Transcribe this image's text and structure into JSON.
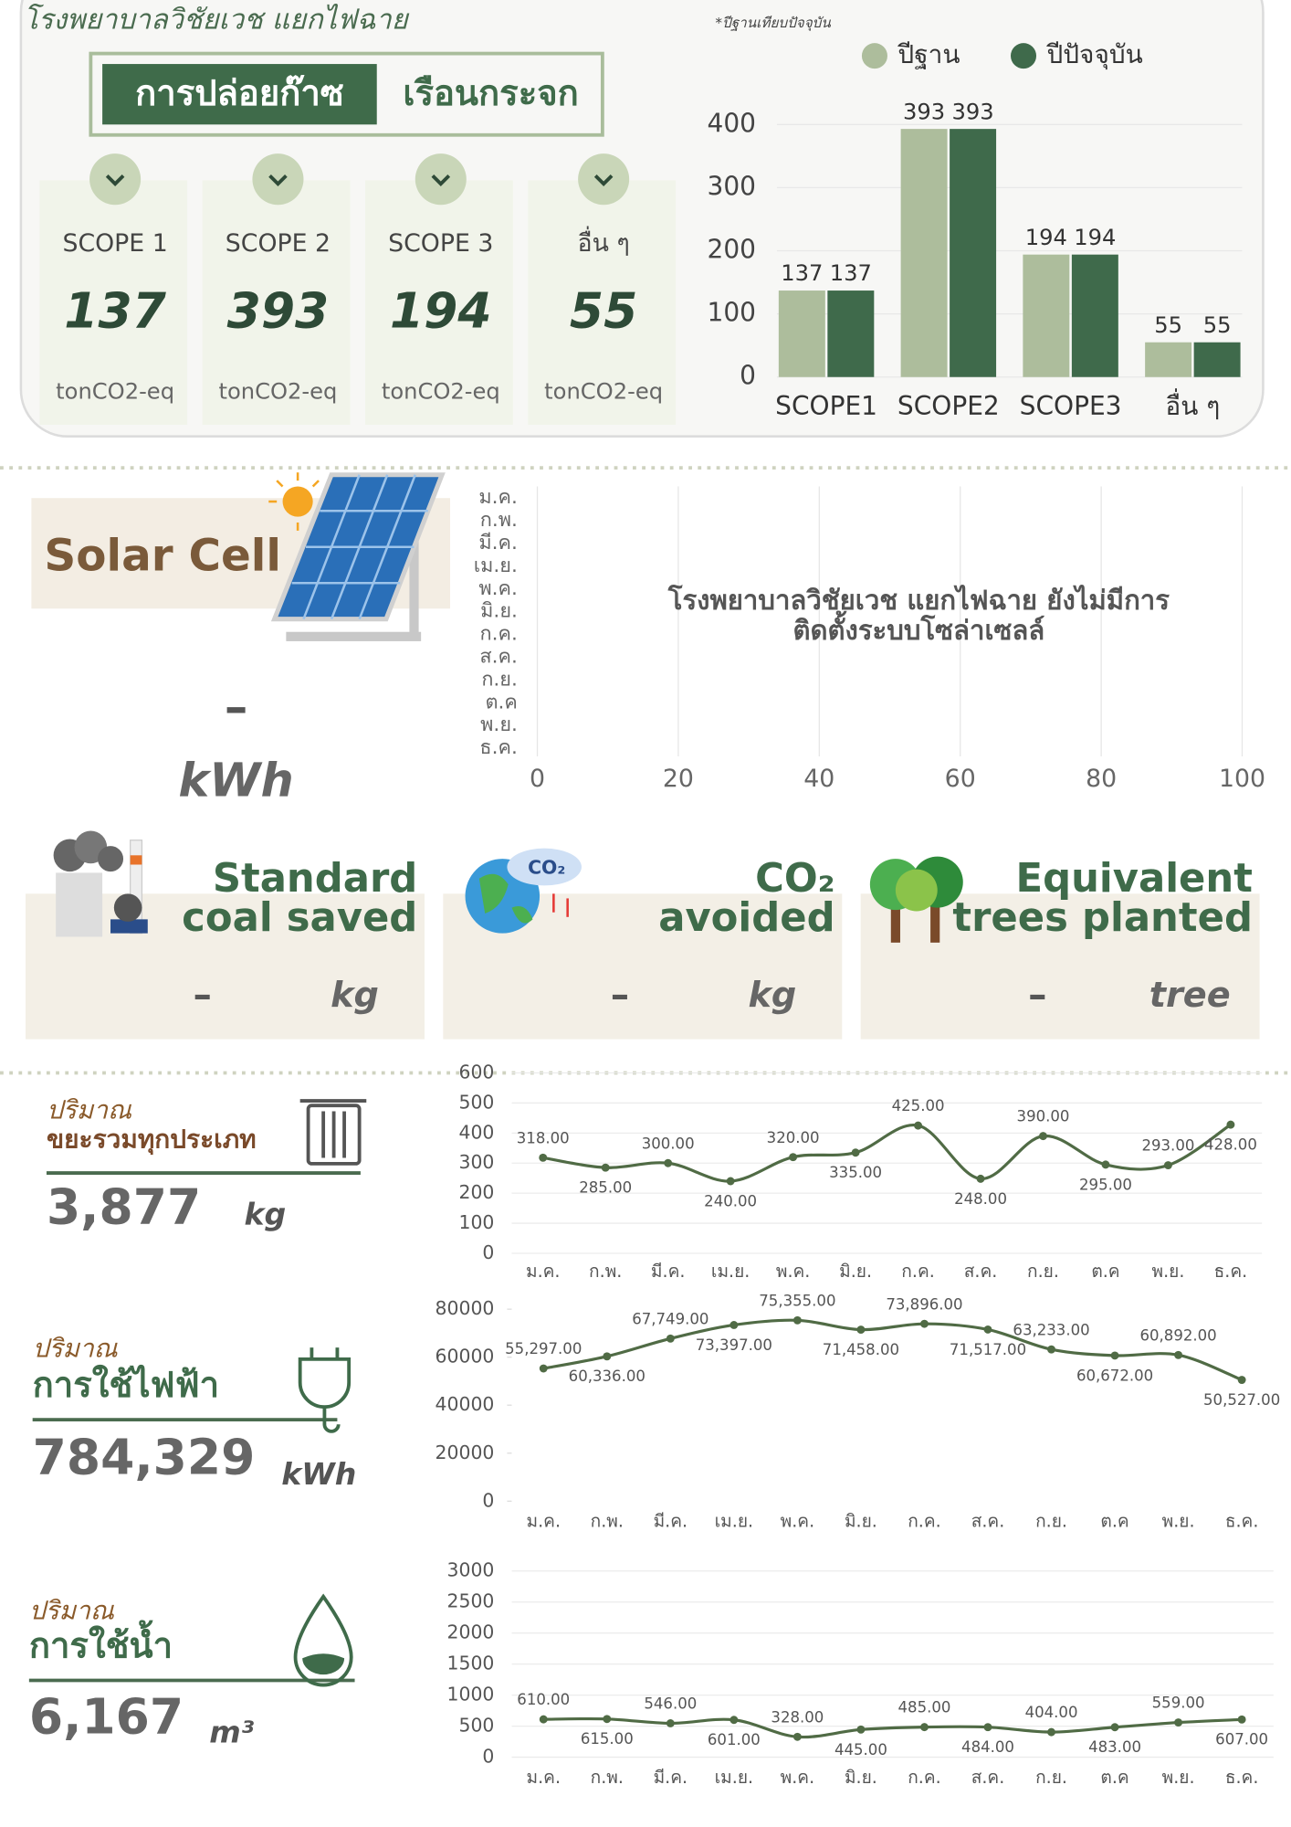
{
  "header": {
    "title": "โรงพยาบาลวิชัยเวช แยกไฟฉาย",
    "banner": [
      "การปล่อยก๊าซ",
      "เรือนกระจก"
    ],
    "note": "*ปีฐานเทียบปัจจุบัน"
  },
  "scopes": [
    {
      "label": "SCOPE 1",
      "value": 137,
      "unit": "tonCO2-eq"
    },
    {
      "label": "SCOPE 2",
      "value": 393,
      "unit": "tonCO2-eq"
    },
    {
      "label": "SCOPE 3",
      "value": 194,
      "unit": "tonCO2-eq"
    },
    {
      "label": "อื่น ๆ",
      "value": 55,
      "unit": "tonCO2-eq"
    }
  ],
  "solar": {
    "title": "Solar Cell",
    "value": "–",
    "unit": "kWh"
  },
  "cards": [
    {
      "title": [
        "Standard",
        "coal saved"
      ],
      "value": "–",
      "unit": "kg"
    },
    {
      "title": [
        "CO₂",
        "avoided"
      ],
      "value": "–",
      "unit": "kg"
    },
    {
      "title": [
        "Equivalent",
        "trees planted"
      ],
      "value": "–",
      "unit": "tree"
    }
  ],
  "panels": [
    {
      "label": "ปริมาณ",
      "title": "ขยะรวมทุกประเภท",
      "total": "3,877",
      "unit": "kg"
    },
    {
      "label": "ปริมาณ",
      "title": "การใช้ไฟฟ้า",
      "total": "784,329",
      "unit": "kWh"
    },
    {
      "label": "ปริมาณ",
      "title": "การใช้น้ำ",
      "total": "6,167",
      "unit": "m³"
    }
  ],
  "chart_data": [
    {
      "type": "bar",
      "categories": [
        "SCOPE1",
        "SCOPE2",
        "SCOPE3",
        "อื่น ๆ"
      ],
      "series": [
        {
          "name": "ปีฐาน",
          "color": "#adbd9c",
          "values": [
            137,
            393,
            194,
            55
          ]
        },
        {
          "name": "ปีปัจจุบัน",
          "color": "#3f6a4b",
          "values": [
            137,
            393,
            194,
            55
          ]
        }
      ],
      "ylim": [
        0,
        400
      ],
      "yticks": [
        0,
        100,
        200,
        300,
        400
      ],
      "grid": true,
      "legend": "top"
    },
    {
      "type": "bar",
      "orientation": "horizontal",
      "categories": [
        "ม.ค.",
        "ก.พ.",
        "มี.ค.",
        "เม.ย.",
        "พ.ค.",
        "มิ.ย.",
        "ก.ค.",
        "ส.ค.",
        "ก.ย.",
        "ต.ค",
        "พ.ย.",
        "ธ.ค."
      ],
      "xlim": [
        0,
        100
      ],
      "xticks": [
        0,
        20,
        40,
        60,
        80,
        100
      ],
      "grid": true,
      "annotation": [
        "โรงพยาบาลวิชัยเวช แยกไฟฉาย ยังไม่มีการ",
        "ติดตั้งระบบโซล่าเซลล์"
      ]
    },
    {
      "type": "line",
      "color": "#506b45",
      "categories": [
        "ม.ค.",
        "ก.พ.",
        "มี.ค.",
        "เม.ย.",
        "พ.ค.",
        "มิ.ย.",
        "ก.ค.",
        "ส.ค.",
        "ก.ย.",
        "ต.ค",
        "พ.ย.",
        "ธ.ค."
      ],
      "values": [
        318,
        285,
        300,
        240,
        320,
        335,
        425,
        248,
        390,
        295,
        293,
        428
      ],
      "value_labels": [
        "318.00",
        "285.00",
        "300.00",
        "240.00",
        "320.00",
        "335.00",
        "425.00",
        "248.00",
        "390.00",
        "295.00",
        "293.00",
        "428.00"
      ],
      "ylim": [
        0,
        600
      ],
      "yticks": [
        0,
        100,
        200,
        300,
        400,
        500,
        600
      ],
      "grid": true
    },
    {
      "type": "line",
      "color": "#506b45",
      "categories": [
        "ม.ค.",
        "ก.พ.",
        "มี.ค.",
        "เม.ย.",
        "พ.ค.",
        "มิ.ย.",
        "ก.ค.",
        "ส.ค.",
        "ก.ย.",
        "ต.ค",
        "พ.ย.",
        "ธ.ค."
      ],
      "values": [
        55297,
        60336,
        67749,
        73397,
        75355,
        71458,
        73896,
        71517,
        63233,
        60672,
        60892,
        50527
      ],
      "value_labels": [
        "55,297.00",
        "60,336.00",
        "67,749.00",
        "73,397.00",
        "75,355.00",
        "71,458.00",
        "73,896.00",
        "71,517.00",
        "63,233.00",
        "60,672.00",
        "60,892.00",
        "50,527.00"
      ],
      "ylim": [
        0,
        80000
      ],
      "yticks": [
        0,
        20000,
        40000,
        60000,
        80000
      ],
      "grid": false
    },
    {
      "type": "line",
      "color": "#506b45",
      "categories": [
        "ม.ค.",
        "ก.พ.",
        "มี.ค.",
        "เม.ย.",
        "พ.ค.",
        "มิ.ย.",
        "ก.ค.",
        "ส.ค.",
        "ก.ย.",
        "ต.ค",
        "พ.ย.",
        "ธ.ค."
      ],
      "values": [
        610,
        615,
        546,
        601,
        328,
        445,
        485,
        484,
        404,
        483,
        559,
        607
      ],
      "value_labels": [
        "610.00",
        "615.00",
        "546.00",
        "601.00",
        "328.00",
        "445.00",
        "485.00",
        "484.00",
        "404.00",
        "483.00",
        "559.00",
        "607.00"
      ],
      "ylim": [
        0,
        3000
      ],
      "yticks": [
        0,
        500,
        1000,
        1500,
        2000,
        2500,
        3000
      ],
      "grid": true
    }
  ]
}
